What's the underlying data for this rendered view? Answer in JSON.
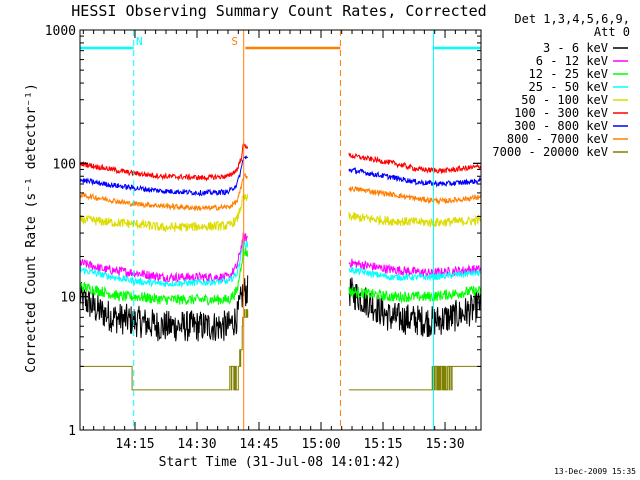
{
  "chart_data": {
    "type": "line",
    "title": "HESSI Observing Summary Count Rates, Corrected",
    "xlabel": "Start Time (31-Jul-08 14:01:42)",
    "ylabel": "Corrected Count Rate (s⁻¹ detector⁻¹)",
    "y_scale": "log",
    "ylim": [
      1,
      1000
    ],
    "xlim_minutes": [
      0,
      97
    ],
    "x_tick_labels": [
      "14:15",
      "14:30",
      "14:45",
      "15:00",
      "15:15",
      "15:30"
    ],
    "x_tick_minutes": [
      13.3,
      28.3,
      43.3,
      58.3,
      73.3,
      88.3
    ],
    "y_tick_labels": [
      "1",
      "10",
      "100",
      "1000"
    ],
    "y_tick_values": [
      1,
      10,
      100,
      1000
    ],
    "legend": {
      "title": "Det 1,3,4,5,6,9,",
      "subtitle": "Att 0",
      "placement": "outside-right"
    },
    "gaps_minutes": [
      [
        40.6,
        65
      ]
    ],
    "markers": [
      {
        "label": "N",
        "color": "#00ffff",
        "segments": [
          [
            0,
            13
          ]
        ]
      },
      {
        "label": "",
        "color": "#00ffff",
        "segments": [
          [
            85.5,
            97
          ]
        ]
      },
      {
        "label": "S",
        "color": "#ff7f00",
        "segments": [
          [
            40,
            63
          ]
        ]
      }
    ],
    "vlines": [
      {
        "minute": 0,
        "color": "#00ffff",
        "style": "solid"
      },
      {
        "minute": 13,
        "color": "#00ffff",
        "style": "dashed"
      },
      {
        "minute": 39.6,
        "color": "#ff7f00",
        "style": "solid"
      },
      {
        "minute": 63,
        "color": "#ff7f00",
        "style": "dashed"
      },
      {
        "minute": 85.5,
        "color": "#00ffff",
        "style": "solid"
      },
      {
        "minute": 97,
        "color": "#00ffff",
        "style": "dashed"
      }
    ],
    "series": [
      {
        "name": "3 - 6 keV",
        "color": "#000000",
        "noise": 0.12,
        "points": [
          [
            0,
            10
          ],
          [
            4,
            8
          ],
          [
            8,
            7
          ],
          [
            14,
            6.5
          ],
          [
            20,
            6
          ],
          [
            30,
            6
          ],
          [
            36,
            6
          ],
          [
            38,
            7
          ],
          [
            39.5,
            11
          ],
          [
            65,
            11
          ],
          [
            70,
            9
          ],
          [
            75,
            7
          ],
          [
            85,
            6.5
          ],
          [
            90,
            7
          ],
          [
            95,
            8
          ],
          [
            97,
            9
          ]
        ]
      },
      {
        "name": "6 - 12 keV",
        "color": "#ff00ff",
        "noise": 0.035,
        "points": [
          [
            0,
            18
          ],
          [
            6,
            16
          ],
          [
            14,
            15
          ],
          [
            20,
            14
          ],
          [
            36,
            14
          ],
          [
            38,
            17
          ],
          [
            39.5,
            28
          ],
          [
            65,
            18
          ],
          [
            75,
            16
          ],
          [
            85,
            15
          ],
          [
            95,
            16
          ],
          [
            97,
            16
          ]
        ]
      },
      {
        "name": "12 - 25 keV",
        "color": "#00ff00",
        "noise": 0.04,
        "points": [
          [
            0,
            12
          ],
          [
            5,
            11
          ],
          [
            10,
            10
          ],
          [
            14,
            10
          ],
          [
            20,
            9.5
          ],
          [
            36,
            9.5
          ],
          [
            38,
            11
          ],
          [
            39.5,
            22
          ],
          [
            65,
            11
          ],
          [
            75,
            10
          ],
          [
            85,
            10
          ],
          [
            95,
            11
          ],
          [
            97,
            11
          ]
        ]
      },
      {
        "name": "25 - 50 keV",
        "color": "#00ffff",
        "noise": 0.025,
        "points": [
          [
            0,
            16
          ],
          [
            8,
            14
          ],
          [
            14,
            13
          ],
          [
            20,
            12.5
          ],
          [
            36,
            13
          ],
          [
            38,
            15
          ],
          [
            39.5,
            25
          ],
          [
            65,
            16
          ],
          [
            75,
            14
          ],
          [
            85,
            14
          ],
          [
            95,
            15
          ],
          [
            97,
            15
          ]
        ]
      },
      {
        "name": "50 - 100 keV",
        "color": "#dcdc00",
        "noise": 0.035,
        "points": [
          [
            0,
            38
          ],
          [
            8,
            36
          ],
          [
            14,
            35
          ],
          [
            20,
            33
          ],
          [
            36,
            34
          ],
          [
            38,
            38
          ],
          [
            39.5,
            55
          ],
          [
            65,
            40
          ],
          [
            75,
            37
          ],
          [
            85,
            36
          ],
          [
            95,
            37
          ],
          [
            97,
            38
          ]
        ]
      },
      {
        "name": "100 - 300 keV",
        "color": "#ff0000",
        "noise": 0.02,
        "points": [
          [
            0,
            100
          ],
          [
            6,
            92
          ],
          [
            12,
            85
          ],
          [
            20,
            80
          ],
          [
            30,
            78
          ],
          [
            36,
            80
          ],
          [
            38,
            90
          ],
          [
            39,
            110
          ],
          [
            39.5,
            135
          ],
          [
            65,
            115
          ],
          [
            70,
            108
          ],
          [
            76,
            100
          ],
          [
            82,
            90
          ],
          [
            88,
            88
          ],
          [
            95,
            93
          ],
          [
            97,
            95
          ]
        ]
      },
      {
        "name": "300 - 800 keV",
        "color": "#0000ff",
        "noise": 0.02,
        "points": [
          [
            0,
            75
          ],
          [
            6,
            70
          ],
          [
            12,
            66
          ],
          [
            20,
            62
          ],
          [
            30,
            60
          ],
          [
            36,
            61
          ],
          [
            38,
            70
          ],
          [
            39,
            90
          ],
          [
            39.5,
            110
          ],
          [
            65,
            90
          ],
          [
            70,
            84
          ],
          [
            76,
            78
          ],
          [
            82,
            72
          ],
          [
            88,
            70
          ],
          [
            95,
            73
          ],
          [
            97,
            74
          ]
        ]
      },
      {
        "name": "800 - 7000 keV",
        "color": "#ff7f00",
        "noise": 0.02,
        "points": [
          [
            0,
            58
          ],
          [
            6,
            54
          ],
          [
            12,
            50
          ],
          [
            20,
            48
          ],
          [
            30,
            46
          ],
          [
            36,
            47
          ],
          [
            38,
            52
          ],
          [
            39,
            65
          ],
          [
            39.5,
            80
          ],
          [
            65,
            65
          ],
          [
            70,
            62
          ],
          [
            76,
            58
          ],
          [
            82,
            54
          ],
          [
            88,
            52
          ],
          [
            95,
            55
          ],
          [
            97,
            56
          ]
        ]
      },
      {
        "name": "7000 - 20000 keV",
        "color": "#808000",
        "step": true,
        "points": [
          [
            0,
            3
          ],
          [
            12,
            3
          ],
          [
            13,
            2
          ],
          [
            25,
            2
          ],
          [
            36,
            2
          ],
          [
            38,
            2.5
          ],
          [
            39,
            4
          ],
          [
            39.5,
            8
          ],
          [
            65,
            2
          ],
          [
            85,
            2
          ],
          [
            90,
            3
          ],
          [
            97,
            3
          ]
        ]
      }
    ]
  },
  "footer": {
    "timestamp": "13-Dec-2009 15:35"
  }
}
